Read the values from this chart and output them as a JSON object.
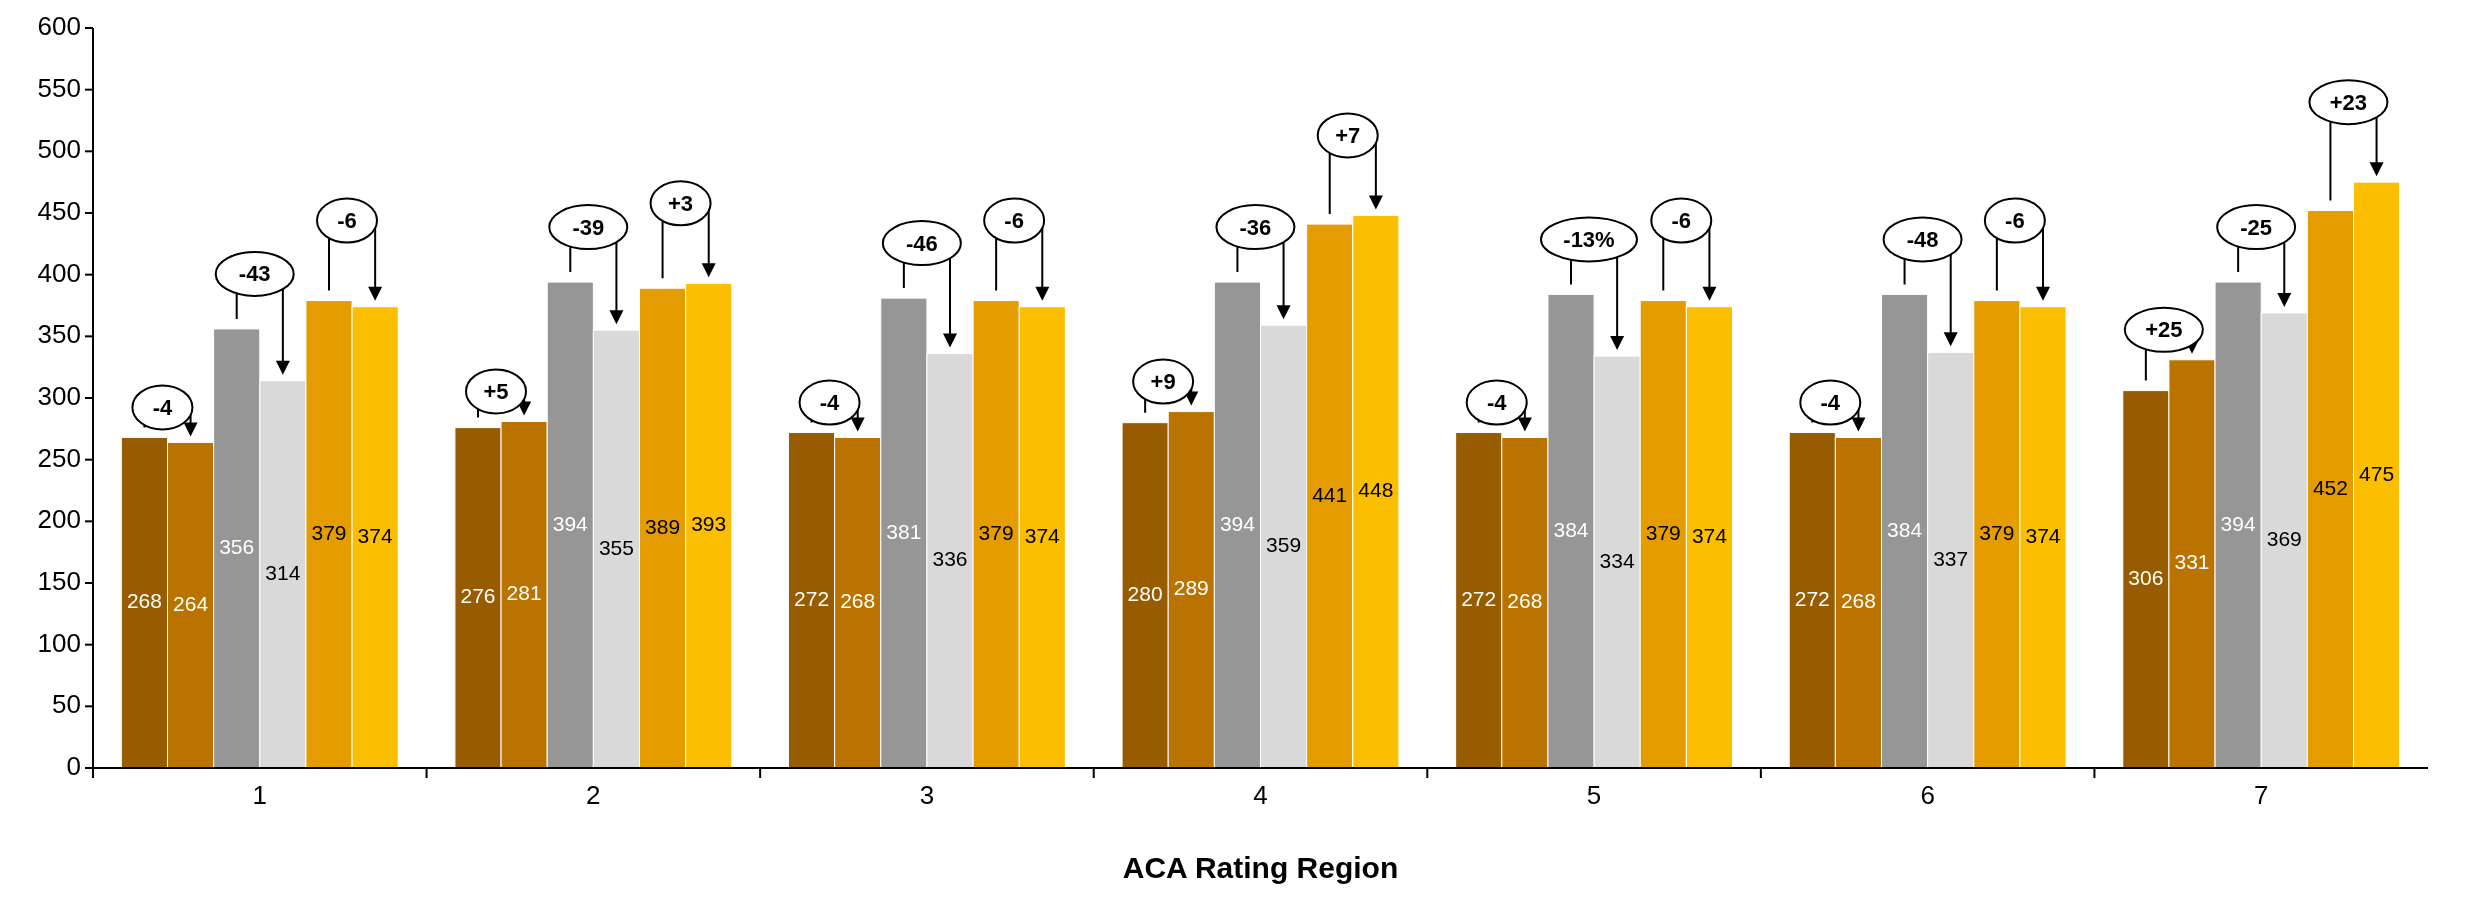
{
  "chart_data": {
    "type": "bar",
    "xlabel": "ACA Rating Region",
    "categories": [
      "1",
      "2",
      "3",
      "4",
      "5",
      "6",
      "7"
    ],
    "series": [
      {
        "color": "#975c00",
        "values": [
          268,
          276,
          272,
          280,
          272,
          272,
          306
        ]
      },
      {
        "color": "#bb7300",
        "values": [
          264,
          281,
          268,
          289,
          268,
          268,
          331
        ]
      },
      {
        "color": "#969696",
        "values": [
          356,
          394,
          381,
          394,
          384,
          384,
          394
        ]
      },
      {
        "color": "#d9d9d9",
        "values": [
          314,
          355,
          336,
          359,
          334,
          337,
          369
        ]
      },
      {
        "color": "#e59c00",
        "values": [
          379,
          389,
          379,
          441,
          379,
          379,
          452
        ]
      },
      {
        "color": "#fbbe00",
        "values": [
          374,
          393,
          374,
          448,
          374,
          374,
          475
        ]
      }
    ],
    "ylim": [
      0,
      600
    ],
    "yticks": [
      0,
      50,
      100,
      150,
      200,
      250,
      300,
      350,
      400,
      450,
      500,
      550,
      600
    ],
    "data_labels": true,
    "grid": false,
    "annotations": [
      "-4",
      "-43",
      "-6",
      "+5",
      "-39",
      "+3",
      "-4",
      "-46",
      "-6",
      "+9",
      "-36",
      "+7",
      "-4",
      "-13%",
      "-6",
      "-4",
      "-48",
      "-6",
      "+25",
      "-25",
      "+23"
    ]
  }
}
